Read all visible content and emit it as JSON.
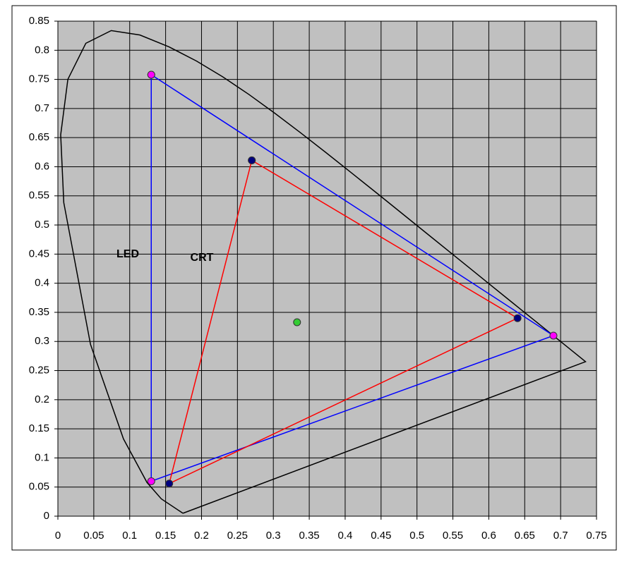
{
  "chart_data": {
    "type": "scatter",
    "xlim": [
      0,
      0.75
    ],
    "ylim": [
      0,
      0.85
    ],
    "xticks": [
      0,
      0.05,
      0.1,
      0.15,
      0.2,
      0.25,
      0.3,
      0.35,
      0.4,
      0.45,
      0.5,
      0.55,
      0.6,
      0.65,
      0.7,
      0.75
    ],
    "yticks": [
      0,
      0.05,
      0.1,
      0.15,
      0.2,
      0.25,
      0.3,
      0.35,
      0.4,
      0.45,
      0.5,
      0.55,
      0.6,
      0.65,
      0.7,
      0.75,
      0.8,
      0.85
    ],
    "grid": true,
    "annotations": [
      "LED",
      "CRT"
    ],
    "series": [
      {
        "color": "#000000",
        "marker": false,
        "x": [
          0.1741,
          0.144,
          0.1241,
          0.0913,
          0.0454,
          0.0082,
          0.0039,
          0.0139,
          0.0389,
          0.0743,
          0.1142,
          0.1547,
          0.1929,
          0.2296,
          0.2658,
          0.3016,
          0.3373,
          0.3731,
          0.4087,
          0.4441,
          0.4788,
          0.5125,
          0.5448,
          0.5752,
          0.6029,
          0.627,
          0.6482,
          0.6658,
          0.6801,
          0.6915,
          0.7006,
          0.7347,
          0.1741
        ],
        "y": [
          0.005,
          0.0297,
          0.0578,
          0.1327,
          0.295,
          0.5384,
          0.6548,
          0.7502,
          0.812,
          0.8338,
          0.8262,
          0.8059,
          0.7816,
          0.7543,
          0.7243,
          0.6923,
          0.6589,
          0.6245,
          0.5896,
          0.5547,
          0.5202,
          0.4866,
          0.4544,
          0.4242,
          0.3965,
          0.3725,
          0.3514,
          0.334,
          0.3197,
          0.3083,
          0.2993,
          0.2653,
          0.005
        ]
      },
      {
        "color": "#0000ff",
        "marker_color": "#ff00ff",
        "x": [
          0.13,
          0.69,
          0.13,
          0.13
        ],
        "y": [
          0.758,
          0.31,
          0.06,
          0.758
        ]
      },
      {
        "color": "#ff0000",
        "marker_color": "#000080",
        "x": [
          0.27,
          0.64,
          0.155,
          0.27
        ],
        "y": [
          0.611,
          0.34,
          0.056,
          0.611
        ]
      },
      {
        "color": "none",
        "marker_color": "#33cc33",
        "x": [
          0.333
        ],
        "y": [
          0.333
        ]
      }
    ]
  }
}
